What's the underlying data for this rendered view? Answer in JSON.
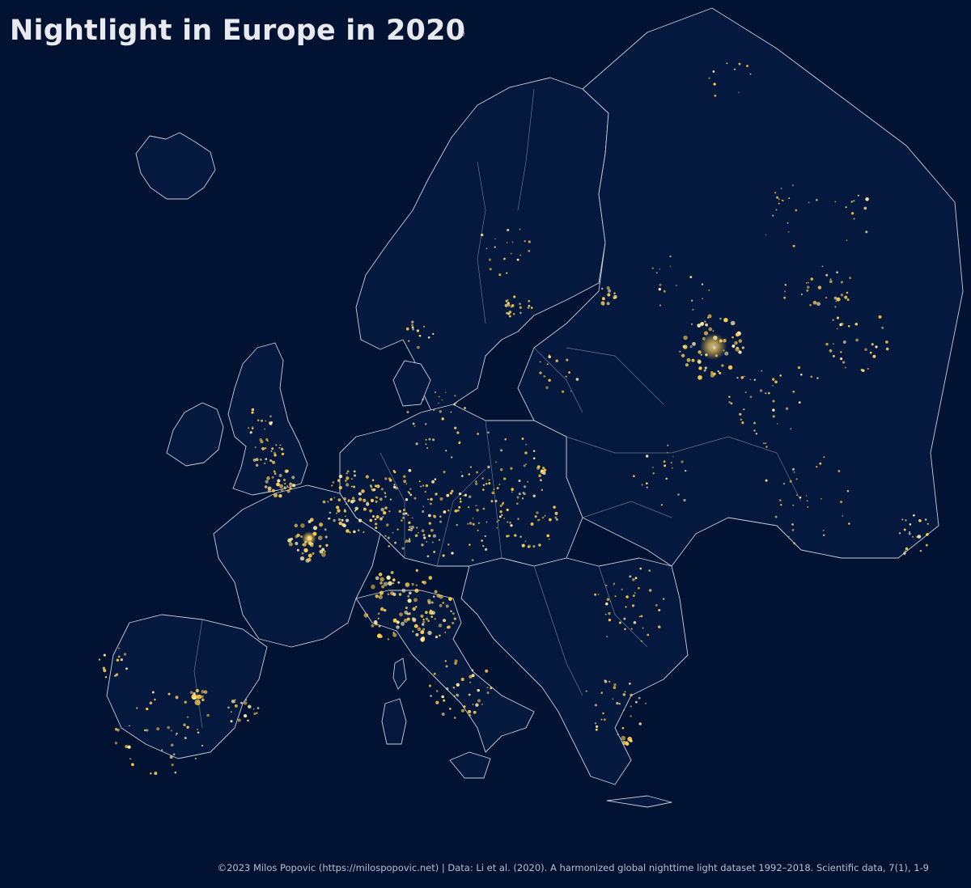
{
  "title": "Nightlight in Europe in 2020",
  "credit": "©2023 Milos Popovic (https://milospopovic.net) | Data: Li et al. (2020). A harmonized global nighttime light dataset 1992–2018. Scientific data, 7(1), 1-9",
  "colors": {
    "background": "#021232",
    "border": "#c9cfdc",
    "light": "#ffd35c",
    "light_core": "#fff3c2"
  }
}
